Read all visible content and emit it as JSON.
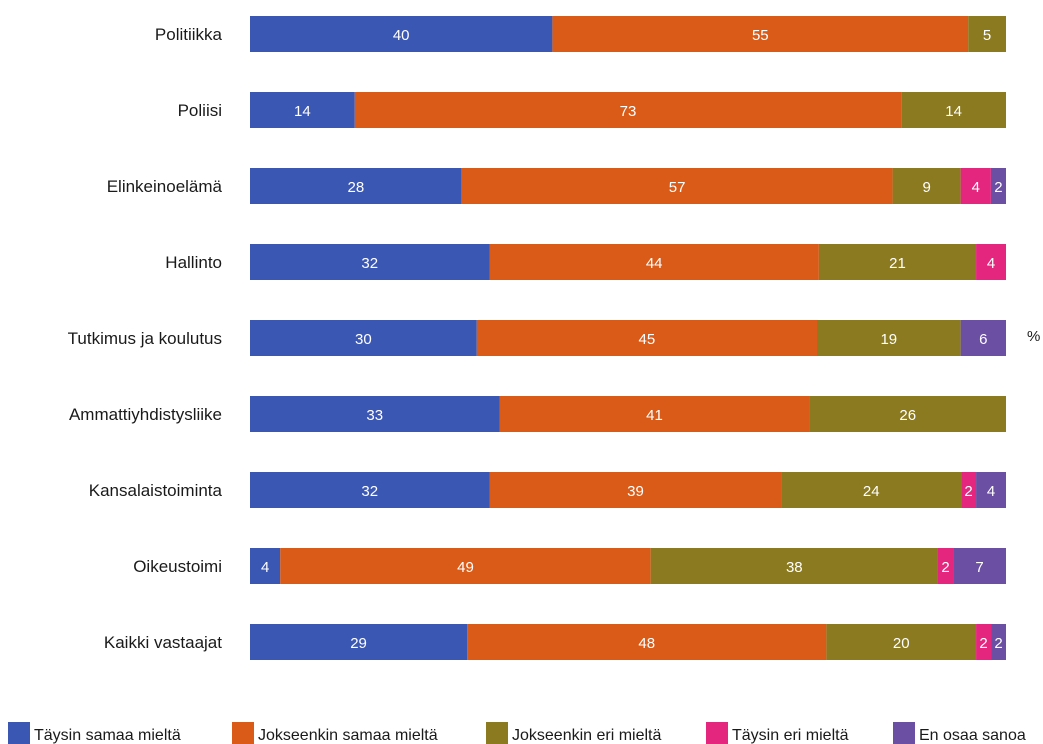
{
  "chart_data": {
    "type": "bar",
    "orientation": "horizontal",
    "stacked": true,
    "unit": "%",
    "categories": [
      "Politiikka",
      "Poliisi",
      "Elinkeinoelämä",
      "Hallinto",
      "Tutkimus ja koulutus",
      "Ammattiyhdistysliike",
      "Kansalaistoiminta",
      "Oikeustoimi",
      "Kaikki vastaajat"
    ],
    "series": [
      {
        "name": "Täysin samaa mieltä",
        "color": "#3b57b4",
        "values": [
          40,
          14,
          28,
          32,
          30,
          33,
          32,
          4,
          29
        ]
      },
      {
        "name": "Jokseenkin samaa mieltä",
        "color": "#d95b17",
        "values": [
          55,
          73,
          57,
          44,
          45,
          41,
          39,
          49,
          48
        ]
      },
      {
        "name": "Jokseenkin eri mieltä",
        "color": "#8b7a1f",
        "values": [
          5,
          14,
          9,
          21,
          19,
          26,
          24,
          38,
          20
        ]
      },
      {
        "name": "Täysin eri mieltä",
        "color": "#e5267f",
        "values": [
          0,
          0,
          4,
          4,
          0,
          0,
          2,
          2,
          2
        ]
      },
      {
        "name": "En osaa sanoa",
        "color": "#6a4fa3",
        "values": [
          0,
          0,
          2,
          0,
          6,
          0,
          4,
          7,
          2
        ]
      }
    ],
    "legend_position": "bottom",
    "grid": false
  }
}
